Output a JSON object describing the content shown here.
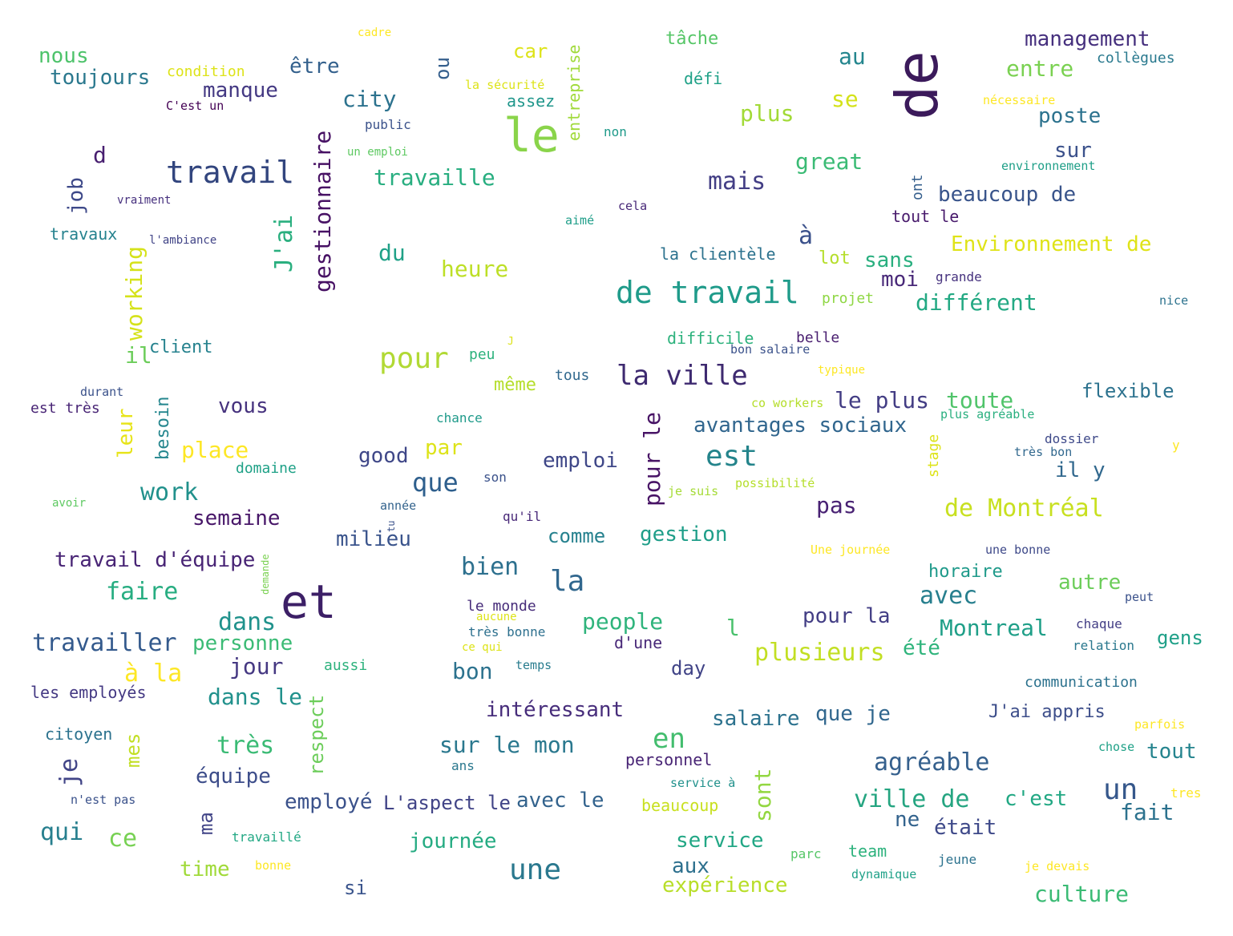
{
  "cloud": {
    "words": [
      {
        "text": "de",
        "color": "#3b1a5b"
      },
      {
        "text": "le",
        "color": "#8ad44a"
      },
      {
        "text": "et",
        "color": "#3c1f66"
      },
      {
        "text": "travail",
        "color": "#32457e"
      },
      {
        "text": "de travail",
        "color": "#1f9b8a"
      },
      {
        "text": "la ville",
        "color": "#3e2a70"
      },
      {
        "text": "pour",
        "color": "#b1d934"
      },
      {
        "text": "est",
        "color": "#24848b"
      },
      {
        "text": "une",
        "color": "#2a788e"
      },
      {
        "text": "la",
        "color": "#31678e"
      },
      {
        "text": "un",
        "color": "#35578b"
      },
      {
        "text": "en",
        "color": "#43bd6e"
      },
      {
        "text": "de Montréal",
        "color": "#c8e020"
      },
      {
        "text": "que",
        "color": "#2e5f8d"
      },
      {
        "text": "bien",
        "color": "#2d708e"
      },
      {
        "text": "agréable",
        "color": "#35608d"
      },
      {
        "text": "ville de",
        "color": "#25a581"
      },
      {
        "text": "travailler",
        "color": "#345a8d"
      },
      {
        "text": "faire",
        "color": "#27ad81"
      },
      {
        "text": "dans",
        "color": "#20928c"
      },
      {
        "text": "très",
        "color": "#3bbb75"
      },
      {
        "text": "plusieurs",
        "color": "#c2df23"
      },
      {
        "text": "avec",
        "color": "#277f8e"
      },
      {
        "text": "Montreal",
        "color": "#1f9f88"
      },
      {
        "text": "gestionnaire",
        "color": "#471164"
      },
      {
        "text": "J'ai",
        "color": "#2aaf7f"
      },
      {
        "text": "travaille",
        "color": "#28ae80"
      },
      {
        "text": "mais",
        "color": "#433e85"
      },
      {
        "text": "à",
        "color": "#3b518b"
      },
      {
        "text": "working",
        "color": "#d5e21a"
      },
      {
        "text": "avantages sociaux",
        "color": "#31668e"
      },
      {
        "text": "le plus",
        "color": "#433d84"
      },
      {
        "text": "toute",
        "color": "#50c46a"
      },
      {
        "text": "différent",
        "color": "#23a983"
      },
      {
        "text": "Environnement de",
        "color": "#dfe318"
      },
      {
        "text": "beaucoup de",
        "color": "#39548b"
      },
      {
        "text": "management",
        "color": "#46307e"
      },
      {
        "text": "entre",
        "color": "#7ad151"
      },
      {
        "text": "poste",
        "color": "#2c728e"
      },
      {
        "text": "plus",
        "color": "#a2da37"
      },
      {
        "text": "great",
        "color": "#3bbb75"
      },
      {
        "text": "au",
        "color": "#24868e"
      },
      {
        "text": "se",
        "color": "#d4e21a"
      },
      {
        "text": "sur",
        "color": "#3b518b"
      },
      {
        "text": "sans",
        "color": "#29af7f"
      },
      {
        "text": "moi",
        "color": "#482878"
      },
      {
        "text": "lot",
        "color": "#b5de2b"
      },
      {
        "text": "city",
        "color": "#2c728e"
      },
      {
        "text": "du",
        "color": "#1fa187"
      },
      {
        "text": "heure",
        "color": "#bddf26"
      },
      {
        "text": "manque",
        "color": "#443983"
      },
      {
        "text": "être",
        "color": "#34618d"
      },
      {
        "text": "toujours",
        "color": "#2a788e"
      },
      {
        "text": "nous",
        "color": "#4ec36b"
      },
      {
        "text": "job",
        "color": "#3e4989"
      },
      {
        "text": "d",
        "color": "#481f70"
      },
      {
        "text": "il",
        "color": "#6ccd5a"
      },
      {
        "text": "client",
        "color": "#26828e"
      },
      {
        "text": "place",
        "color": "#fde725"
      },
      {
        "text": "vous",
        "color": "#46327e"
      },
      {
        "text": "work",
        "color": "#21918c"
      },
      {
        "text": "semaine",
        "color": "#481769"
      },
      {
        "text": "good",
        "color": "#3f4788"
      },
      {
        "text": "par",
        "color": "#dde318"
      },
      {
        "text": "emploi",
        "color": "#3f4788"
      },
      {
        "text": "pour le",
        "color": "#471365"
      },
      {
        "text": "pas",
        "color": "#482173"
      },
      {
        "text": "il y",
        "color": "#31688e"
      },
      {
        "text": "flexible",
        "color": "#2c728e"
      },
      {
        "text": "milieu",
        "color": "#3a548c"
      },
      {
        "text": "gestion",
        "color": "#1f9e89"
      },
      {
        "text": "comme",
        "color": "#26818e"
      },
      {
        "text": "travail d'équipe",
        "color": "#482475"
      },
      {
        "text": "personne",
        "color": "#3bbb75"
      },
      {
        "text": "jour",
        "color": "#453882"
      },
      {
        "text": "à la",
        "color": "#fde725"
      },
      {
        "text": "dans le",
        "color": "#21918c"
      },
      {
        "text": "people",
        "color": "#2fb47c"
      },
      {
        "text": "pour la",
        "color": "#433e85"
      },
      {
        "text": "l",
        "color": "#4ac16d"
      },
      {
        "text": "été",
        "color": "#2fb47c"
      },
      {
        "text": "d'une",
        "color": "#482878"
      },
      {
        "text": "day",
        "color": "#414487"
      },
      {
        "text": "bon",
        "color": "#2c728e"
      },
      {
        "text": "intéressant",
        "color": "#472d7b"
      },
      {
        "text": "salaire",
        "color": "#2c728e"
      },
      {
        "text": "que je",
        "color": "#31678e"
      },
      {
        "text": "J'ai appris",
        "color": "#3d4e8a"
      },
      {
        "text": "autre",
        "color": "#6ccd5a"
      },
      {
        "text": "horaire",
        "color": "#1f9a8a"
      },
      {
        "text": "gens",
        "color": "#1fa088"
      },
      {
        "text": "sur le mon",
        "color": "#2a788e"
      },
      {
        "text": "équipe",
        "color": "#3d4d8a"
      },
      {
        "text": "respect",
        "color": "#6ccd5a"
      },
      {
        "text": "mes",
        "color": "#c2df23"
      },
      {
        "text": "je",
        "color": "#414487"
      },
      {
        "text": "qui",
        "color": "#277f8e"
      },
      {
        "text": "ce",
        "color": "#77d153"
      },
      {
        "text": "employé",
        "color": "#3b528b"
      },
      {
        "text": "L'aspect le",
        "color": "#414487"
      },
      {
        "text": "avec le",
        "color": "#33638d"
      },
      {
        "text": "sont",
        "color": "#93d741"
      },
      {
        "text": "ne",
        "color": "#33638d"
      },
      {
        "text": "était",
        "color": "#3e4989"
      },
      {
        "text": "c'est",
        "color": "#22a884"
      },
      {
        "text": "fait",
        "color": "#2c728e"
      },
      {
        "text": "tout",
        "color": "#25848e"
      },
      {
        "text": "journée",
        "color": "#25ab82"
      },
      {
        "text": "service",
        "color": "#22a785"
      },
      {
        "text": "aux",
        "color": "#2d708e"
      },
      {
        "text": "expérience",
        "color": "#b8de29"
      },
      {
        "text": "culture",
        "color": "#3bbb75"
      },
      {
        "text": "time",
        "color": "#a0da39"
      },
      {
        "text": "si",
        "color": "#3a548c"
      },
      {
        "text": "ma",
        "color": "#414487"
      },
      {
        "text": "leur",
        "color": "#e7e419"
      },
      {
        "text": "besoin",
        "color": "#24868e"
      },
      {
        "text": "ou",
        "color": "#355f8d"
      },
      {
        "text": "car",
        "color": "#dde318"
      },
      {
        "text": "entreprise",
        "color": "#a0da39"
      },
      {
        "text": "assez",
        "color": "#1f968b"
      },
      {
        "text": "tâche",
        "color": "#56c667"
      },
      {
        "text": "défi",
        "color": "#1fa187"
      },
      {
        "text": "collègues",
        "color": "#29798e"
      },
      {
        "text": "nécessaire",
        "color": "#fde725"
      },
      {
        "text": "environnement",
        "color": "#1f9f88"
      },
      {
        "text": "ont",
        "color": "#355f8d"
      },
      {
        "text": "tout le",
        "color": "#481a6c"
      },
      {
        "text": "grande",
        "color": "#46327e"
      },
      {
        "text": "projet",
        "color": "#8fd744"
      },
      {
        "text": "nice",
        "color": "#2c728e"
      },
      {
        "text": "la clientèle",
        "color": "#2c728e"
      },
      {
        "text": "difficile",
        "color": "#2db27d"
      },
      {
        "text": "belle",
        "color": "#481d6f"
      },
      {
        "text": "bon salaire",
        "color": "#3b528b"
      },
      {
        "text": "typique",
        "color": "#fde725"
      },
      {
        "text": "co workers",
        "color": "#b5de2b"
      },
      {
        "text": "plus agréable",
        "color": "#29af7f"
      },
      {
        "text": "dossier",
        "color": "#3e4989"
      },
      {
        "text": "très bon",
        "color": "#31688e"
      },
      {
        "text": "y",
        "color": "#fde725"
      },
      {
        "text": "stage",
        "color": "#dde318"
      },
      {
        "text": "possibilité",
        "color": "#b5de2b"
      },
      {
        "text": "je suis",
        "color": "#a5db36"
      },
      {
        "text": "cadre",
        "color": "#fde725"
      },
      {
        "text": "condition",
        "color": "#dde318"
      },
      {
        "text": "C'est un",
        "color": "#440154"
      },
      {
        "text": "la sécurité",
        "color": "#dde318"
      },
      {
        "text": "public",
        "color": "#3b528b"
      },
      {
        "text": "un emploi",
        "color": "#5ec962"
      },
      {
        "text": "non",
        "color": "#1f9a8a"
      },
      {
        "text": "vraiment",
        "color": "#46307e"
      },
      {
        "text": "cela",
        "color": "#482878"
      },
      {
        "text": "aimé",
        "color": "#1f9e89"
      },
      {
        "text": "travaux",
        "color": "#26828e"
      },
      {
        "text": "l'ambiance",
        "color": "#414487"
      },
      {
        "text": "peu",
        "color": "#2db27d"
      },
      {
        "text": "J",
        "color": "#dde318"
      },
      {
        "text": "tous",
        "color": "#31688e"
      },
      {
        "text": "même",
        "color": "#b5de2b"
      },
      {
        "text": "durant",
        "color": "#3b528b"
      },
      {
        "text": "est très",
        "color": "#482475"
      },
      {
        "text": "chance",
        "color": "#1f9a8a"
      },
      {
        "text": "domaine",
        "color": "#1fa187"
      },
      {
        "text": "son",
        "color": "#3b528b"
      },
      {
        "text": "avoir",
        "color": "#5ec962"
      },
      {
        "text": "année",
        "color": "#33638d"
      },
      {
        "text": "qu'il",
        "color": "#482878"
      },
      {
        "text": "tu",
        "color": "#3b528b"
      },
      {
        "text": "demande",
        "color": "#7ad151"
      },
      {
        "text": "Une journée",
        "color": "#fde725"
      },
      {
        "text": "une bonne",
        "color": "#3e4989"
      },
      {
        "text": "le monde",
        "color": "#472c7a"
      },
      {
        "text": "aucune",
        "color": "#dde318"
      },
      {
        "text": "très bonne",
        "color": "#2d708e"
      },
      {
        "text": "ce qui",
        "color": "#dde318"
      },
      {
        "text": "peut",
        "color": "#3b528b"
      },
      {
        "text": "chaque",
        "color": "#433e85"
      },
      {
        "text": "relation",
        "color": "#2a788e"
      },
      {
        "text": "communication",
        "color": "#2c728e"
      },
      {
        "text": "aussi",
        "color": "#2db27d"
      },
      {
        "text": "temps",
        "color": "#287c8e"
      },
      {
        "text": "les employés",
        "color": "#443983"
      },
      {
        "text": "citoyen",
        "color": "#2c728e"
      },
      {
        "text": "parfois",
        "color": "#fde725"
      },
      {
        "text": "chose",
        "color": "#1fa187"
      },
      {
        "text": "tres",
        "color": "#fde725"
      },
      {
        "text": "ans",
        "color": "#2a788e"
      },
      {
        "text": "personnel",
        "color": "#482475"
      },
      {
        "text": "service à",
        "color": "#21918c"
      },
      {
        "text": "beaucoup",
        "color": "#c8e020"
      },
      {
        "text": "n'est pas",
        "color": "#3b528b"
      },
      {
        "text": "travaillé",
        "color": "#22a884"
      },
      {
        "text": "bonne",
        "color": "#fde725"
      },
      {
        "text": "parc",
        "color": "#56c667"
      },
      {
        "text": "team",
        "color": "#2db27d"
      },
      {
        "text": "dynamique",
        "color": "#1fa188"
      },
      {
        "text": "jeune",
        "color": "#2c728e"
      },
      {
        "text": "je devais",
        "color": "#fde725"
      }
    ]
  }
}
